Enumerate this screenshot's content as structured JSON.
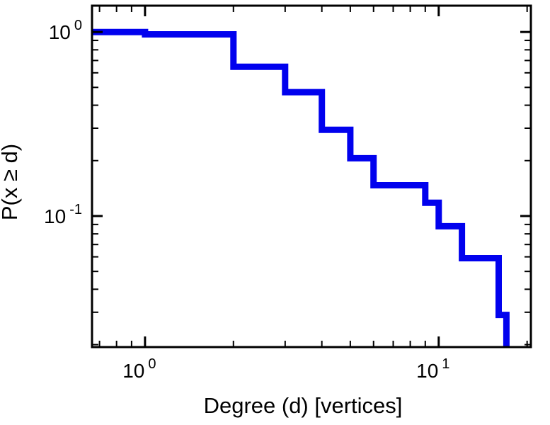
{
  "chart_data": {
    "type": "line",
    "style": "log-log step CCDF (staircase, no markers)",
    "title": "",
    "xlabel": "Degree (d) [vertices]",
    "ylabel": "P(x ≥ d)",
    "xscale": "log",
    "yscale": "log",
    "xlim": [
      0.66,
      20.6
    ],
    "ylim": [
      0.0194,
      1.39
    ],
    "grid": false,
    "legend": "none",
    "line": {
      "color": "#0101ee",
      "width": 9
    },
    "frame": {
      "color": "#000000",
      "width": 3
    },
    "steps_note": "horizontal level p holds until next x; at each x the curve drops vertically to the new p; final p=0 plunges below the bottom axis",
    "steps": [
      {
        "x": 0.66,
        "p": 1.0
      },
      {
        "x": 1,
        "p": 0.971
      },
      {
        "x": 2,
        "p": 0.647
      },
      {
        "x": 3,
        "p": 0.471
      },
      {
        "x": 4,
        "p": 0.294
      },
      {
        "x": 5,
        "p": 0.206
      },
      {
        "x": 6,
        "p": 0.147
      },
      {
        "x": 9,
        "p": 0.118
      },
      {
        "x": 10,
        "p": 0.088
      },
      {
        "x": 12,
        "p": 0.059
      },
      {
        "x": 16,
        "p": 0.029
      },
      {
        "x": 17,
        "p": 0
      }
    ],
    "x_ticks": {
      "major": [
        {
          "value": 1,
          "mantissa": "10",
          "exponent": "0"
        },
        {
          "value": 10,
          "mantissa": "10",
          "exponent": "1"
        }
      ],
      "minor": [
        0.7,
        0.8,
        0.9,
        2,
        3,
        4,
        5,
        6,
        7,
        8,
        9,
        20
      ]
    },
    "y_ticks": {
      "major": [
        {
          "value": 1,
          "mantissa": "10",
          "exponent": "0"
        },
        {
          "value": 0.1,
          "mantissa": "10",
          "exponent": "-1"
        }
      ],
      "minor": [
        0.9,
        0.8,
        0.7,
        0.6,
        0.5,
        0.4,
        0.3,
        0.2,
        0.09,
        0.08,
        0.07,
        0.06,
        0.05,
        0.04,
        0.03,
        0.02
      ]
    }
  }
}
